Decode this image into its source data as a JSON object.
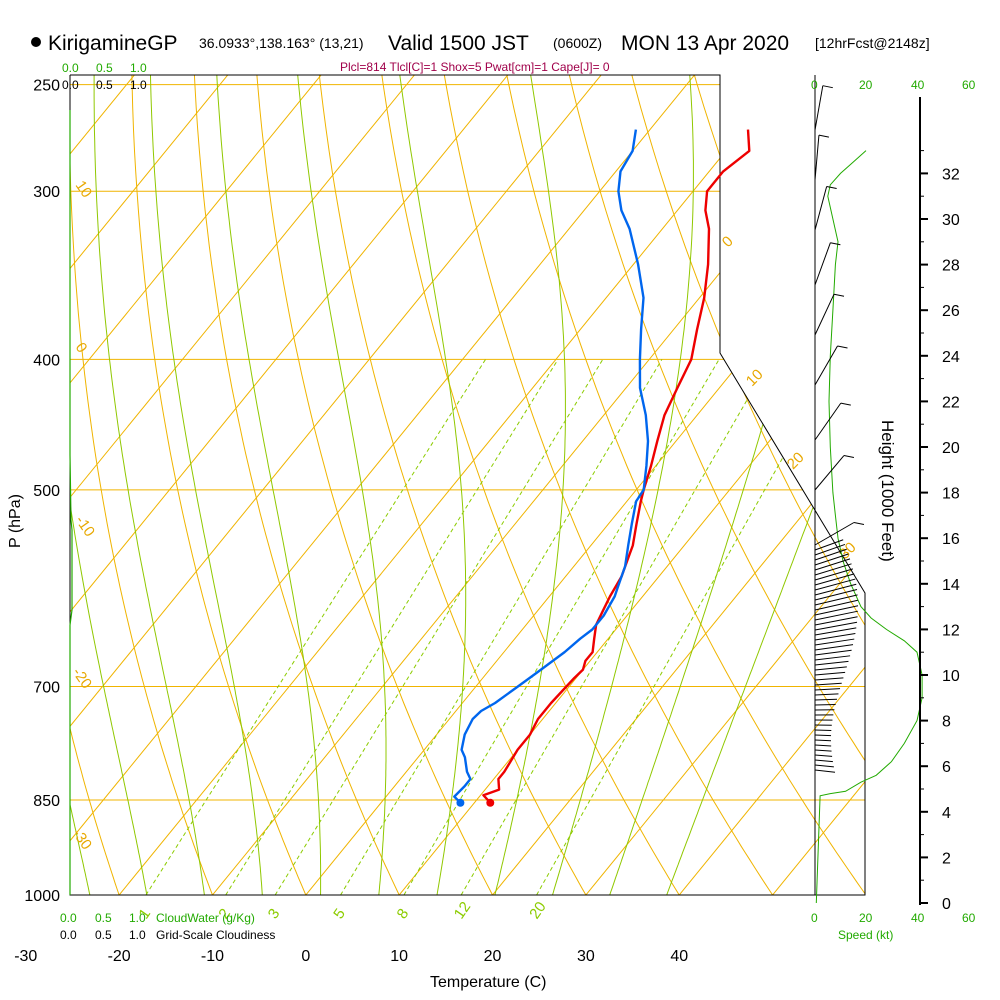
{
  "header": {
    "station": "KirigamineGP",
    "coords": "36.0933°,138.163° (13,21)",
    "valid_prefix": "Valid 1500 JST",
    "valid_z": "(0600Z)",
    "valid_date": "MON 13 Apr 2020",
    "forecast": "[12hrFcst@2148z]"
  },
  "indices": "Plcl=814 Tlcl[C]=1 Shox=5 Pwat[cm]=1 Cape[J]= 0",
  "scales": {
    "cloudwater_ticks": [
      "0.0",
      "0.5",
      "1.0"
    ],
    "cloudwater_label": "CloudWater (g/Kg)",
    "cloudiness_ticks": [
      "0.0",
      "0.5",
      "1.0"
    ],
    "cloudiness_label": "Grid-Scale Cloudiness",
    "speed_ticks": [
      "0",
      "20",
      "40",
      "60"
    ],
    "speed_label": "Speed (kt)"
  },
  "colors": {
    "isobar": "#f0b400",
    "isotherm": "#f0b400",
    "dry_adiabat": "#f0b400",
    "moist_adiabat": "#90c800",
    "mixing_ratio": "#8ccc00",
    "temperature": "#ee0000",
    "dewpoint": "#0066ee",
    "cloud": "#22aa00",
    "wind_speed": "#22aa00"
  },
  "chart_data": {
    "type": "line",
    "subtype": "skew-T log-P sounding",
    "xlabel": "Temperature (C)",
    "ylabel": "P (hPa)",
    "y2label": "Height (1000 Feet)",
    "xticks": [
      -30,
      -20,
      -10,
      0,
      10,
      20,
      30,
      40
    ],
    "yticks": [
      250,
      300,
      400,
      500,
      700,
      850,
      1000
    ],
    "height_ticks_kft": [
      0,
      2,
      4,
      6,
      8,
      10,
      12,
      14,
      16,
      18,
      20,
      22,
      24,
      26,
      28,
      30,
      32
    ],
    "isotherm_labels": [
      "10",
      "0",
      "-10",
      "-20",
      "-30",
      "0",
      "10",
      "20",
      "30"
    ],
    "mixing_ratio_labels": [
      "1",
      "2",
      "3",
      "5",
      "8",
      "12",
      "20"
    ],
    "series": [
      {
        "name": "temperature",
        "points": [
          [
            11.7,
            854
          ],
          [
            10.3,
            843
          ],
          [
            11.5,
            835
          ],
          [
            10.5,
            820
          ],
          [
            10.5,
            810
          ],
          [
            10,
            780
          ],
          [
            10,
            760
          ],
          [
            9.5,
            740
          ],
          [
            9.5,
            720
          ],
          [
            9.7,
            700
          ],
          [
            9.8,
            690
          ],
          [
            10,
            680
          ],
          [
            9.5,
            670
          ],
          [
            9.5,
            660
          ],
          [
            8.5,
            645
          ],
          [
            7.5,
            630
          ],
          [
            7,
            615
          ],
          [
            6.5,
            600
          ],
          [
            6,
            580
          ],
          [
            5,
            560
          ],
          [
            4.5,
            550
          ],
          [
            3,
            530
          ],
          [
            1.5,
            510
          ],
          [
            0.8,
            500
          ],
          [
            -0.5,
            480
          ],
          [
            -2,
            460
          ],
          [
            -3.5,
            440
          ],
          [
            -4.5,
            420
          ],
          [
            -5.5,
            400
          ],
          [
            -7.5,
            380
          ],
          [
            -9.5,
            360
          ],
          [
            -12,
            340
          ],
          [
            -15,
            320
          ],
          [
            -17,
            310
          ],
          [
            -18.5,
            300
          ],
          [
            -18.5,
            290
          ],
          [
            -17.5,
            280
          ],
          [
            -19.5,
            270
          ]
        ]
      },
      {
        "name": "dewpoint",
        "points": [
          [
            8.5,
            854
          ],
          [
            7.3,
            845
          ],
          [
            7.5,
            830
          ],
          [
            7.5,
            820
          ],
          [
            6.5,
            810
          ],
          [
            5,
            790
          ],
          [
            4,
            780
          ],
          [
            3,
            760
          ],
          [
            2.5,
            740
          ],
          [
            2.7,
            730
          ],
          [
            3.5,
            720
          ],
          [
            4.5,
            700
          ],
          [
            5,
            690
          ],
          [
            5.5,
            680
          ],
          [
            6.5,
            660
          ],
          [
            7,
            645
          ],
          [
            7.5,
            635
          ],
          [
            7.5,
            620
          ],
          [
            7,
            600
          ],
          [
            6.5,
            590
          ],
          [
            5.5,
            570
          ],
          [
            4,
            550
          ],
          [
            2.5,
            530
          ],
          [
            1,
            510
          ],
          [
            0.8,
            500
          ],
          [
            -1,
            480
          ],
          [
            -3,
            460
          ],
          [
            -5.5,
            440
          ],
          [
            -8.5,
            420
          ],
          [
            -11,
            400
          ],
          [
            -13.5,
            380
          ],
          [
            -16,
            360
          ],
          [
            -19.5,
            340
          ],
          [
            -23.5,
            320
          ],
          [
            -26,
            310
          ],
          [
            -28,
            300
          ],
          [
            -29.5,
            290
          ],
          [
            -30,
            280
          ],
          [
            -31.5,
            270
          ]
        ]
      }
    ],
    "wind_speed_profile_kt": [
      [
        0.5,
        0
      ],
      [
        2,
        4.7
      ],
      [
        6,
        4.8
      ],
      [
        12,
        4.9
      ],
      [
        18,
        5.3
      ],
      [
        24,
        5.6
      ],
      [
        30,
        6.2
      ],
      [
        35,
        7
      ],
      [
        40,
        8
      ],
      [
        42,
        9
      ],
      [
        42,
        10
      ],
      [
        40,
        11
      ],
      [
        35,
        11.5
      ],
      [
        28,
        12
      ],
      [
        22,
        12.5
      ],
      [
        18,
        13
      ],
      [
        14,
        14
      ],
      [
        11,
        15
      ],
      [
        9,
        16
      ],
      [
        8,
        17
      ],
      [
        7,
        18
      ],
      [
        6,
        20
      ],
      [
        5.5,
        22
      ],
      [
        6,
        24
      ],
      [
        7,
        26
      ],
      [
        8,
        28
      ],
      [
        9,
        29
      ],
      [
        7,
        30
      ],
      [
        5,
        31
      ],
      [
        6,
        31.5
      ],
      [
        10,
        32
      ],
      [
        15,
        32.5
      ],
      [
        20,
        33
      ]
    ],
    "cloudwater_max_gkg": 0.1
  }
}
